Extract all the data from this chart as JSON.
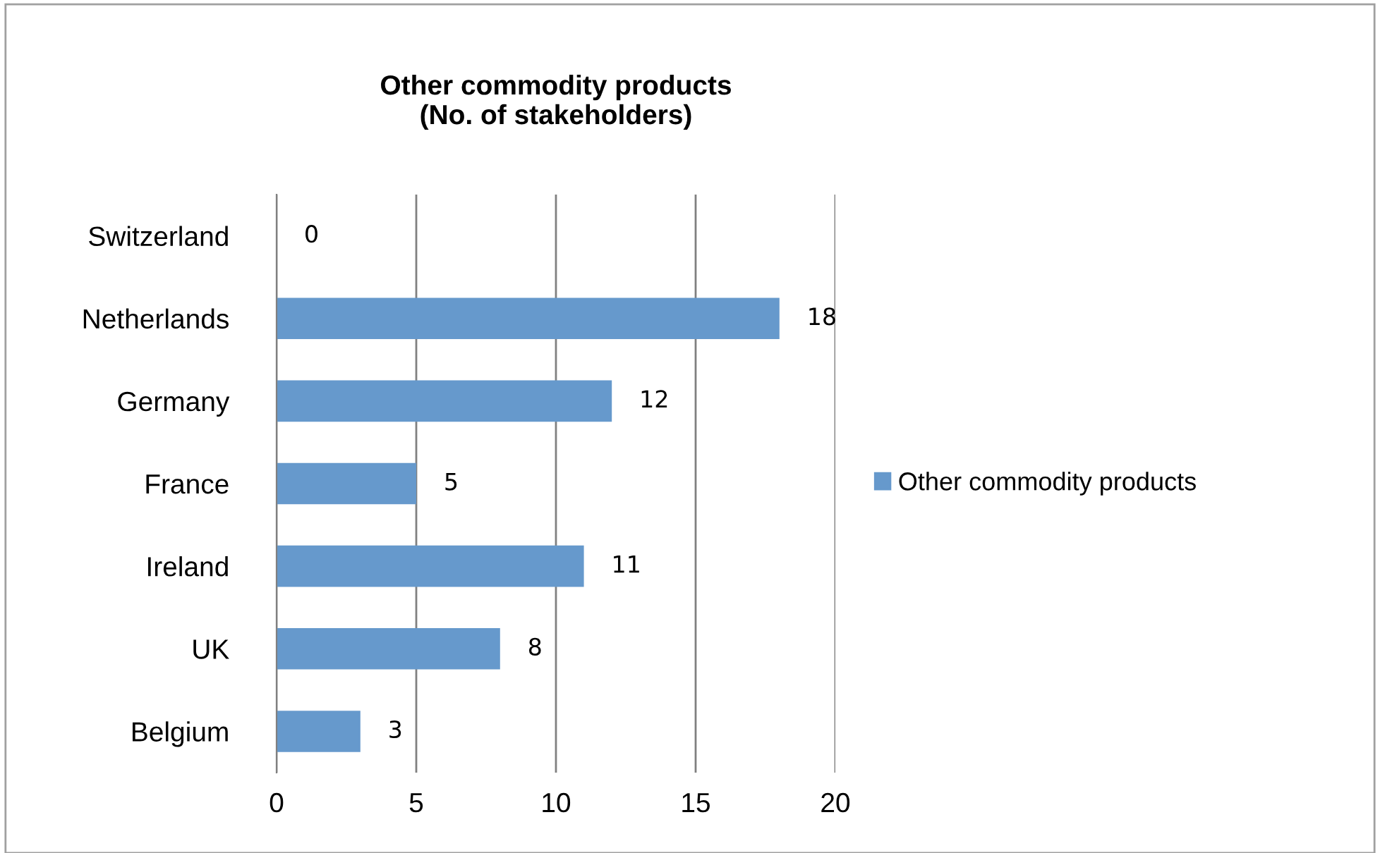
{
  "chart_data": {
    "type": "bar",
    "orientation": "horizontal",
    "title": "Other commodity products\n(No. of stakeholders)",
    "categories": [
      "Switzerland",
      "Netherlands",
      "Germany",
      "France",
      "Ireland",
      "UK",
      "Belgium"
    ],
    "series": [
      {
        "name": "Other commodity products",
        "color": "#6699cc",
        "values": [
          0,
          18,
          12,
          5,
          11,
          8,
          3
        ]
      }
    ],
    "xlim": [
      0,
      20
    ],
    "xticks": [
      0,
      5,
      10,
      15,
      20
    ],
    "grid": "x",
    "legend": "right",
    "data_labels": true
  }
}
